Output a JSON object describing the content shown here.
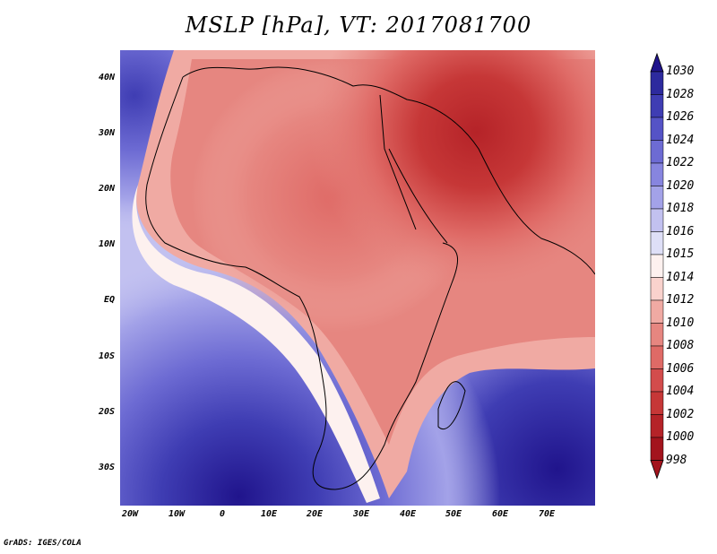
{
  "title": "MSLP [hPa], VT: 2017081700",
  "credit": "GrADS: IGES/COLA",
  "map": {
    "projection": "latlon",
    "lon_range": [
      -25,
      80
    ],
    "lat_range": [
      -36,
      45
    ],
    "lat_labels": [
      {
        "lat": 40,
        "text": "40N"
      },
      {
        "lat": 30,
        "text": "30N"
      },
      {
        "lat": 20,
        "text": "20N"
      },
      {
        "lat": 10,
        "text": "10N"
      },
      {
        "lat": 0,
        "text": "EQ"
      },
      {
        "lat": -10,
        "text": "10S"
      },
      {
        "lat": -20,
        "text": "20S"
      },
      {
        "lat": -30,
        "text": "30S"
      }
    ],
    "lon_labels": [
      {
        "lon": -20,
        "text": "20W"
      },
      {
        "lon": -10,
        "text": "10W"
      },
      {
        "lon": 0,
        "text": "0"
      },
      {
        "lon": 10,
        "text": "10E"
      },
      {
        "lon": 20,
        "text": "20E"
      },
      {
        "lon": 30,
        "text": "30E"
      },
      {
        "lon": 40,
        "text": "40E"
      },
      {
        "lon": 50,
        "text": "50E"
      },
      {
        "lon": 60,
        "text": "60E"
      },
      {
        "lon": 70,
        "text": "70E"
      }
    ]
  },
  "colorbar": {
    "labels": [
      "1030",
      "1028",
      "1026",
      "1024",
      "1022",
      "1020",
      "1018",
      "1016",
      "1015",
      "1014",
      "1012",
      "1010",
      "1008",
      "1006",
      "1004",
      "1002",
      "1000",
      "998"
    ],
    "colors": [
      "#20148c",
      "#2d2a9e",
      "#3f3db3",
      "#5553c6",
      "#6d6bd3",
      "#8785df",
      "#a3a2e8",
      "#c2c1f0",
      "#dedff7",
      "#fdf1ef",
      "#f9d2cd",
      "#f0aaa3",
      "#e68680",
      "#df6a66",
      "#d34c4c",
      "#c63737",
      "#b52328",
      "#a3141d"
    ]
  }
}
